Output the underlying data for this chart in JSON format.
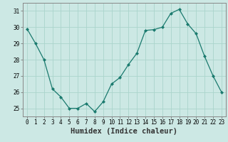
{
  "x": [
    0,
    1,
    2,
    3,
    4,
    5,
    6,
    7,
    8,
    9,
    10,
    11,
    12,
    13,
    14,
    15,
    16,
    17,
    18,
    19,
    20,
    21,
    22,
    23
  ],
  "y": [
    29.9,
    29.0,
    28.0,
    26.2,
    25.7,
    25.0,
    25.0,
    25.3,
    24.8,
    25.4,
    26.5,
    26.9,
    27.7,
    28.4,
    29.8,
    29.85,
    30.0,
    30.85,
    31.1,
    30.2,
    29.6,
    28.2,
    27.0,
    26.0
  ],
  "line_color": "#1a7a6e",
  "marker": "D",
  "marker_size": 2.0,
  "bg_color": "#cce8e4",
  "grid_color": "#aad4cc",
  "xlabel": "Humidex (Indice chaleur)",
  "xlim": [
    -0.5,
    23.5
  ],
  "ylim": [
    24.5,
    31.5
  ],
  "yticks": [
    25,
    26,
    27,
    28,
    29,
    30,
    31
  ],
  "xticks": [
    0,
    1,
    2,
    3,
    4,
    5,
    6,
    7,
    8,
    9,
    10,
    11,
    12,
    13,
    14,
    15,
    16,
    17,
    18,
    19,
    20,
    21,
    22,
    23
  ],
  "tick_fontsize": 5.5,
  "label_fontsize": 7.5
}
